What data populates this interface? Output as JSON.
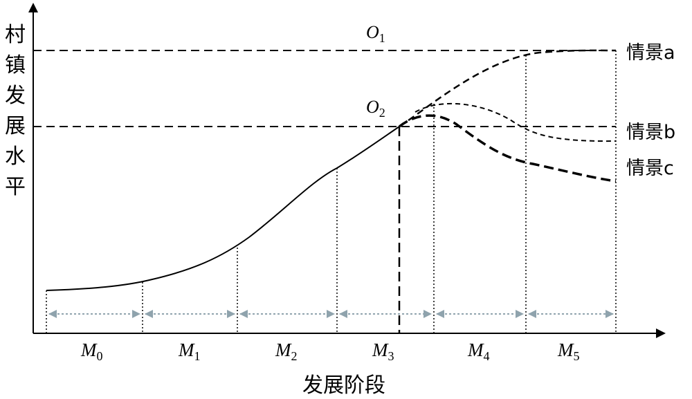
{
  "diagram": {
    "y_axis_label": "村镇发展水平",
    "x_axis_label": "发展阶段",
    "levels": [
      {
        "main": "O",
        "sub": "1"
      },
      {
        "main": "O",
        "sub": "2"
      }
    ],
    "scenarios": [
      "情景a",
      "情景b",
      "情景c"
    ],
    "stages": [
      {
        "main": "M",
        "sub": "0"
      },
      {
        "main": "M",
        "sub": "1"
      },
      {
        "main": "M",
        "sub": "2"
      },
      {
        "main": "M",
        "sub": "3"
      },
      {
        "main": "M",
        "sub": "4"
      },
      {
        "main": "M",
        "sub": "5"
      }
    ],
    "colors": {
      "line": "#000000",
      "arrow": "#8fa3ad"
    }
  }
}
